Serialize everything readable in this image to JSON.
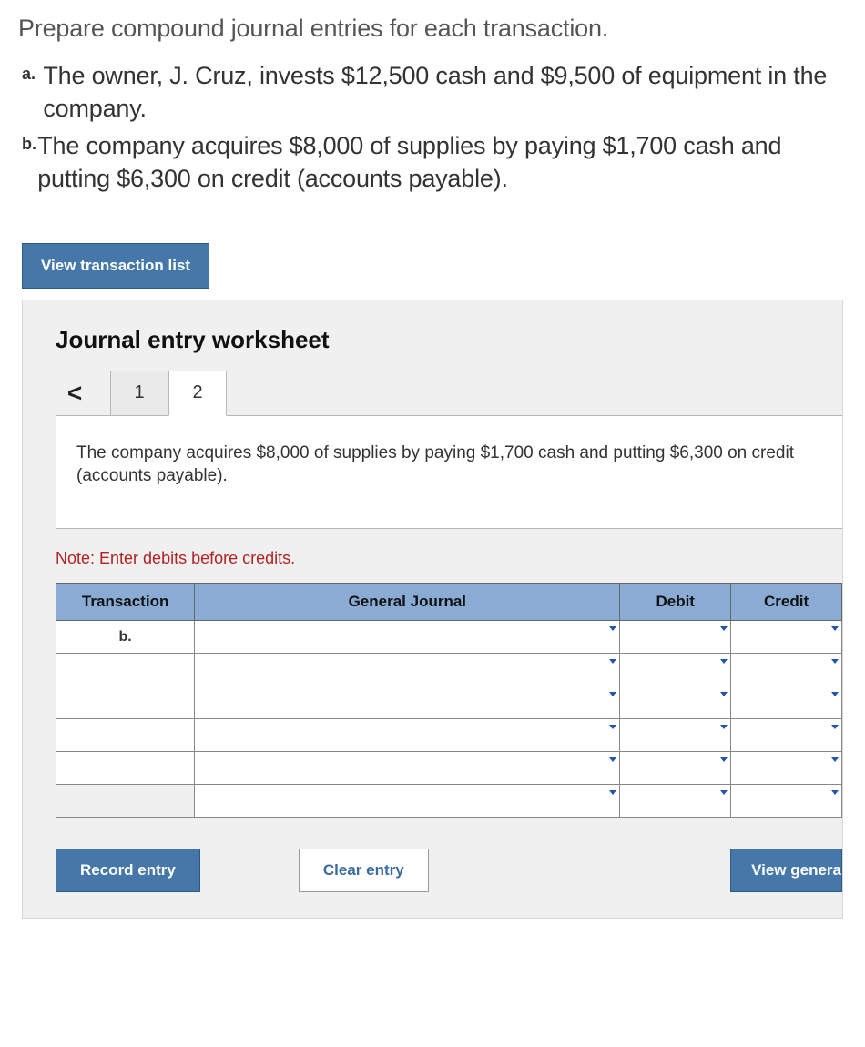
{
  "instruction": "Prepare compound journal entries for each transaction.",
  "items": [
    {
      "marker": "a.",
      "text": "The owner, J. Cruz, invests $12,500 cash and $9,500 of equipment in the company."
    },
    {
      "marker": "b.",
      "text": "The company acquires $8,000 of supplies by paying $1,700 cash and putting $6,300 on credit (accounts payable)."
    }
  ],
  "view_list_label": "View transaction list",
  "worksheet": {
    "title": "Journal entry worksheet",
    "chevron": "<",
    "tabs": [
      {
        "label": "1",
        "active": false
      },
      {
        "label": "2",
        "active": true
      }
    ],
    "description": "The company acquires $8,000 of supplies by paying $1,700 cash and putting $6,300 on credit (accounts payable).",
    "note": "Note: Enter debits before credits.",
    "table": {
      "headers": {
        "transaction": "Transaction",
        "general_journal": "General Journal",
        "debit": "Debit",
        "credit": "Credit"
      },
      "first_row_label": "b.",
      "row_count": 6,
      "colors": {
        "header_bg": "#89abd4",
        "border": "#666666",
        "cell_border": "#888888"
      }
    },
    "buttons": {
      "record": "Record entry",
      "clear": "Clear entry",
      "view_general": "View genera"
    }
  },
  "styling": {
    "primary_btn_bg": "#4577a9",
    "primary_btn_text": "#ffffff",
    "panel_bg": "#f0f0f0",
    "note_color": "#b22222",
    "instruction_fontsize": 27,
    "body_fontsize": 27
  }
}
